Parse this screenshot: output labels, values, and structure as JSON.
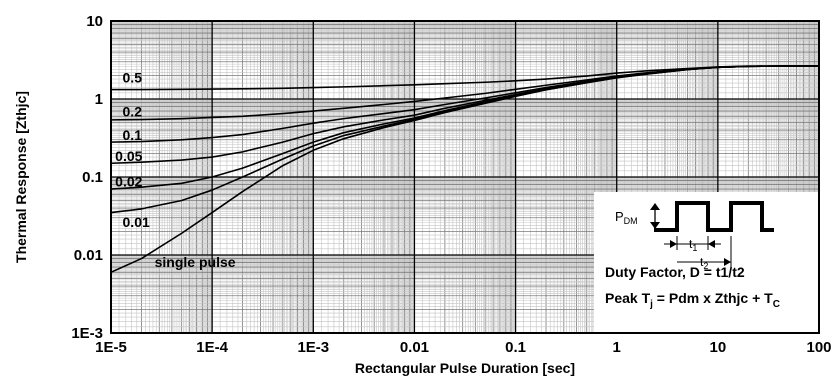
{
  "chart_data": {
    "type": "line",
    "title": "",
    "xlabel": "Rectangular Pulse Duration [sec]",
    "ylabel": "Thermal Response [Zthjc]",
    "x_scale": "log",
    "y_scale": "log",
    "xlim": [
      1e-05,
      100
    ],
    "ylim": [
      0.001,
      10
    ],
    "x_ticks": [
      "1E-5",
      "1E-4",
      "1E-3",
      "0.01",
      "0.1",
      "1",
      "10",
      "100"
    ],
    "y_ticks": [
      "1E-3",
      "0.01",
      "0.1",
      "1",
      "10"
    ],
    "grid": true,
    "x": [
      1e-05,
      2e-05,
      5e-05,
      0.0001,
      0.0002,
      0.0005,
      0.001,
      0.002,
      0.005,
      0.01,
      0.02,
      0.05,
      0.1,
      0.2,
      0.5,
      1,
      2,
      5,
      10,
      20,
      50,
      100
    ],
    "series": [
      {
        "name": "0.5",
        "values": [
          1.32,
          1.32,
          1.33,
          1.34,
          1.35,
          1.37,
          1.4,
          1.43,
          1.48,
          1.52,
          1.57,
          1.64,
          1.71,
          1.8,
          1.97,
          2.15,
          2.3,
          2.46,
          2.58,
          2.64,
          2.65,
          2.65
        ]
      },
      {
        "name": "0.2",
        "values": [
          0.54,
          0.545,
          0.56,
          0.58,
          0.6,
          0.65,
          0.7,
          0.76,
          0.85,
          0.93,
          1.03,
          1.18,
          1.33,
          1.5,
          1.75,
          1.97,
          2.17,
          2.42,
          2.56,
          2.63,
          2.65,
          2.65
        ]
      },
      {
        "name": "0.1",
        "values": [
          0.28,
          0.285,
          0.3,
          0.32,
          0.35,
          0.42,
          0.49,
          0.56,
          0.65,
          0.73,
          0.85,
          1.03,
          1.2,
          1.4,
          1.68,
          1.92,
          2.13,
          2.4,
          2.55,
          2.62,
          2.65,
          2.65
        ]
      },
      {
        "name": "0.05",
        "values": [
          0.15,
          0.155,
          0.165,
          0.18,
          0.21,
          0.28,
          0.36,
          0.44,
          0.54,
          0.62,
          0.76,
          0.96,
          1.14,
          1.35,
          1.64,
          1.9,
          2.11,
          2.39,
          2.55,
          2.62,
          2.65,
          2.65
        ]
      },
      {
        "name": "0.02",
        "values": [
          0.07,
          0.074,
          0.083,
          0.1,
          0.13,
          0.2,
          0.28,
          0.37,
          0.48,
          0.57,
          0.71,
          0.92,
          1.11,
          1.33,
          1.63,
          1.89,
          2.1,
          2.39,
          2.55,
          2.62,
          2.65,
          2.65
        ]
      },
      {
        "name": "0.01",
        "values": [
          0.035,
          0.039,
          0.05,
          0.068,
          0.1,
          0.17,
          0.25,
          0.34,
          0.45,
          0.55,
          0.69,
          0.9,
          1.1,
          1.32,
          1.62,
          1.88,
          2.1,
          2.38,
          2.55,
          2.62,
          2.65,
          2.65
        ]
      },
      {
        "name": "single pulse",
        "values": [
          0.006,
          0.009,
          0.019,
          0.035,
          0.065,
          0.14,
          0.22,
          0.31,
          0.43,
          0.53,
          0.67,
          0.88,
          1.08,
          1.31,
          1.61,
          1.87,
          2.09,
          2.38,
          2.55,
          2.62,
          2.65,
          2.65
        ]
      }
    ],
    "label_positions": [
      {
        "text": "0.5",
        "x": 1.3e-05,
        "y": 1.62
      },
      {
        "text": "0.2",
        "x": 1.3e-05,
        "y": 0.6
      },
      {
        "text": "0.1",
        "x": 1.3e-05,
        "y": 0.3
      },
      {
        "text": "0.05",
        "x": 1.1e-05,
        "y": 0.16
      },
      {
        "text": "0.02",
        "x": 1.1e-05,
        "y": 0.075
      },
      {
        "text": "0.01",
        "x": 1.3e-05,
        "y": 0.023
      },
      {
        "text": "single pulse",
        "x": 2.7e-05,
        "y": 0.007
      }
    ],
    "inset": {
      "pdm_main": "P",
      "pdm_sub": "DM",
      "t1_main": "t",
      "t1_sub": "1",
      "t2_main": "t",
      "t2_sub": "2",
      "duty_factor": "Duty Factor, D = t1/t2",
      "peak_prefix": "Peak T",
      "peak_tj_sub": "j",
      "peak_middle": " = Pdm x Zthjc + T",
      "peak_tc_sub": "C"
    }
  }
}
